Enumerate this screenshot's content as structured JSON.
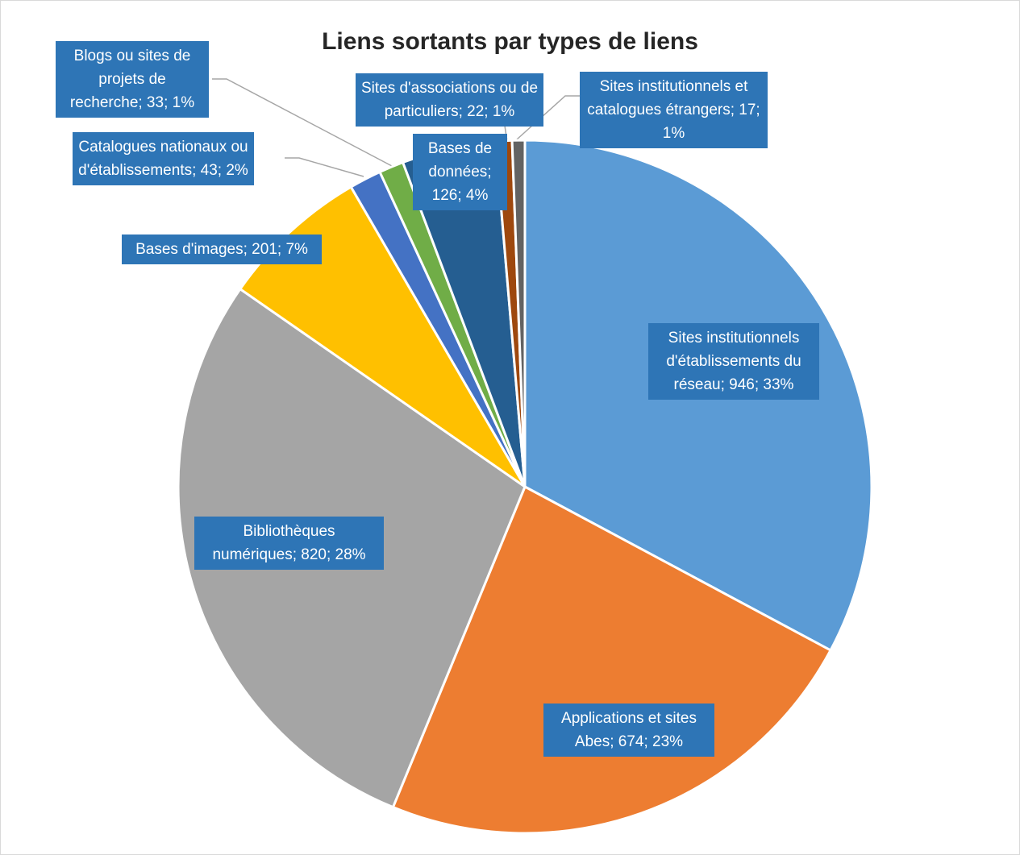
{
  "chart_data": {
    "type": "pie",
    "title": "Liens sortants par types de liens",
    "categories": [
      "Sites institutionnels d'établissements du réseau",
      "Applications et sites Abes",
      "Bibliothèques numériques",
      "Bases d'images",
      "Catalogues nationaux ou d'établissements",
      "Blogs ou sites de projets de recherche",
      "Bases de données",
      "Sites d'associations ou de particuliers",
      "Sites institutionnels et catalogues étrangers"
    ],
    "values": [
      946,
      674,
      820,
      201,
      43,
      33,
      126,
      22,
      17
    ],
    "value_labels": [
      "Sites institutionnels d'établissements du réseau; 946; 33%",
      "Applications et sites Abes; 674; 23%",
      "Bibliothèques numériques; 820; 28%",
      "Bases d'images; 201; 7%",
      "Catalogues nationaux ou d'établissements; 43; 2%",
      "Blogs ou sites de projets de recherche; 33; 1%",
      "Bases de données; 126; 4%",
      "Sites d'associations ou de particuliers; 22; 1%",
      "Sites institutionnels et catalogues étrangers; 17; 1%"
    ],
    "colors": [
      "#5b9bd5",
      "#ed7d31",
      "#a5a5a5",
      "#ffc000",
      "#4472c4",
      "#70ad47",
      "#255e91",
      "#9e480e",
      "#636363"
    ]
  }
}
